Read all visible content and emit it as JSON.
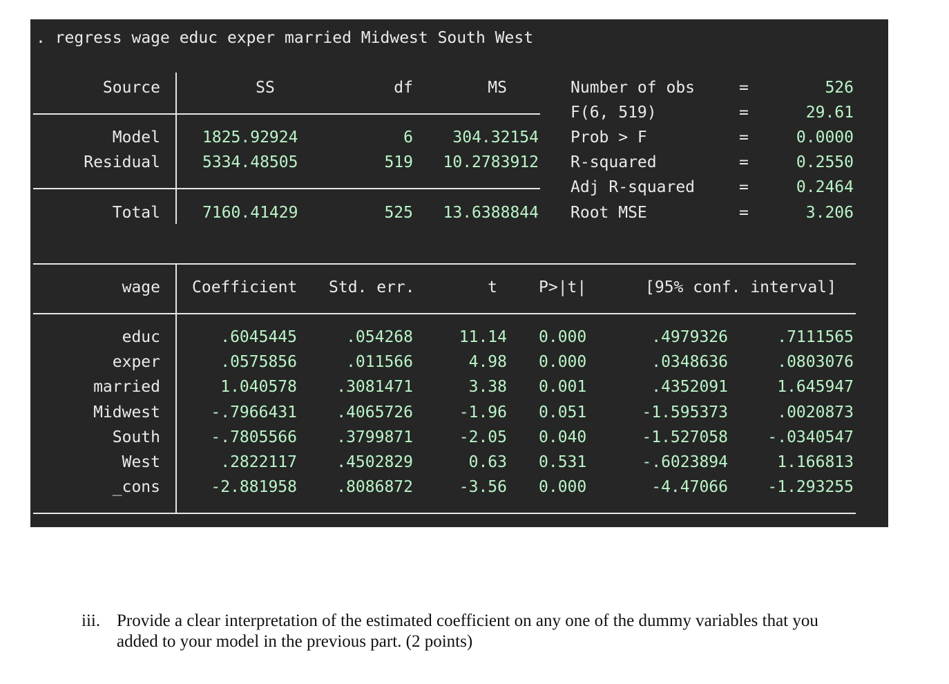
{
  "command": ". regress wage educ exper married Midwest South West",
  "anova": {
    "headers": {
      "source": "Source",
      "ss": "SS",
      "df": "df",
      "ms": "MS"
    },
    "rows": [
      {
        "source": "Model",
        "ss": "1825.92924",
        "df": "6",
        "ms": "304.32154"
      },
      {
        "source": "Residual",
        "ss": "5334.48505",
        "df": "519",
        "ms": "10.2783912"
      },
      {
        "source": "Total",
        "ss": "7160.41429",
        "df": "525",
        "ms": "13.6388844"
      }
    ]
  },
  "stats": [
    {
      "label": "Number of obs",
      "eq": "=",
      "value": "526"
    },
    {
      "label": "F(6, 519)",
      "eq": "=",
      "value": "29.61"
    },
    {
      "label": "Prob > F",
      "eq": "=",
      "value": "0.0000"
    },
    {
      "label": "R-squared",
      "eq": "=",
      "value": "0.2550"
    },
    {
      "label": "Adj R-squared",
      "eq": "=",
      "value": "0.2464"
    },
    {
      "label": "Root MSE",
      "eq": "=",
      "value": "3.206"
    }
  ],
  "coef_table": {
    "headers": {
      "var": "wage",
      "coef": "Coefficient",
      "se": "Std. err.",
      "t": "t",
      "p": "P>|t|",
      "ci": "[95% conf. interval]"
    },
    "rows": [
      {
        "var": "educ",
        "coef": ".6045445",
        "se": ".054268",
        "t": "11.14",
        "p": "0.000",
        "lo": ".4979326",
        "hi": ".7111565"
      },
      {
        "var": "exper",
        "coef": ".0575856",
        "se": ".011566",
        "t": "4.98",
        "p": "0.000",
        "lo": ".0348636",
        "hi": ".0803076"
      },
      {
        "var": "married",
        "coef": "1.040578",
        "se": ".3081471",
        "t": "3.38",
        "p": "0.001",
        "lo": ".4352091",
        "hi": "1.645947"
      },
      {
        "var": "Midwest",
        "coef": "-.7966431",
        "se": ".4065726",
        "t": "-1.96",
        "p": "0.051",
        "lo": "-1.595373",
        "hi": ".0020873"
      },
      {
        "var": "South",
        "coef": "-.7805566",
        "se": ".3799871",
        "t": "-2.05",
        "p": "0.040",
        "lo": "-1.527058",
        "hi": "-.0340547"
      },
      {
        "var": "West",
        "coef": ".2822117",
        "se": ".4502829",
        "t": "0.63",
        "p": "0.531",
        "lo": "-.6023894",
        "hi": "1.166813"
      },
      {
        "var": "_cons",
        "coef": "-2.881958",
        "se": ".8086872",
        "t": "-3.56",
        "p": "0.000",
        "lo": "-4.47066",
        "hi": "-1.293255"
      }
    ]
  },
  "question": {
    "number": "iii.",
    "text": "Provide a clear interpretation of the estimated coefficient on any one of the dummy variables that you added to your model in the previous part. (2 points)"
  },
  "colors": {
    "terminal_bg": "#262626",
    "text": "#eaeaea",
    "number": "#b9f5c6"
  }
}
